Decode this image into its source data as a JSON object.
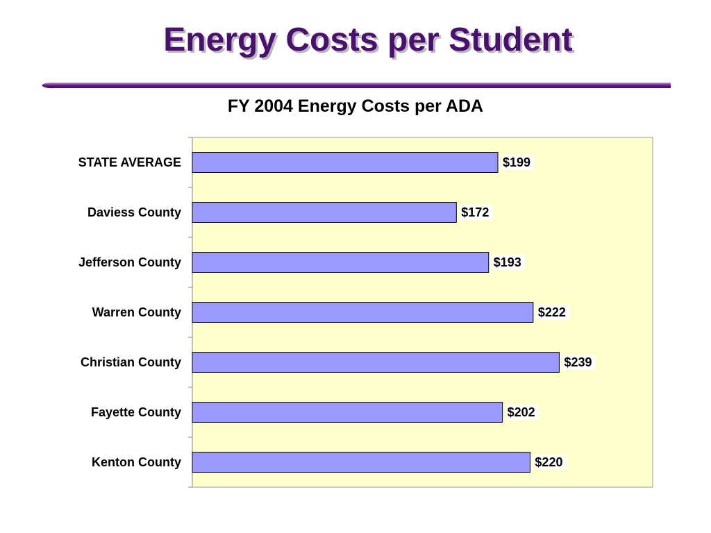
{
  "slide": {
    "title": "Energy Costs per Student",
    "title_color": "#4b0f72",
    "rule_color": "#6a1f8a"
  },
  "chart_data": {
    "type": "bar",
    "orientation": "horizontal",
    "title": "FY 2004 Energy Costs per ADA",
    "categories": [
      "STATE AVERAGE",
      "Daviess County",
      "Jefferson County",
      "Warren County",
      "Christian County",
      "Fayette County",
      "Kenton County"
    ],
    "values": [
      199,
      172,
      193,
      222,
      239,
      202,
      220
    ],
    "value_labels": [
      "$199",
      "$172",
      "$193",
      "$222",
      "$239",
      "$202",
      "$220"
    ],
    "xlim": [
      0,
      300
    ],
    "grid": false,
    "legend": "none",
    "bar_color": "#9999ff",
    "plot_background": "#ffffcc"
  }
}
